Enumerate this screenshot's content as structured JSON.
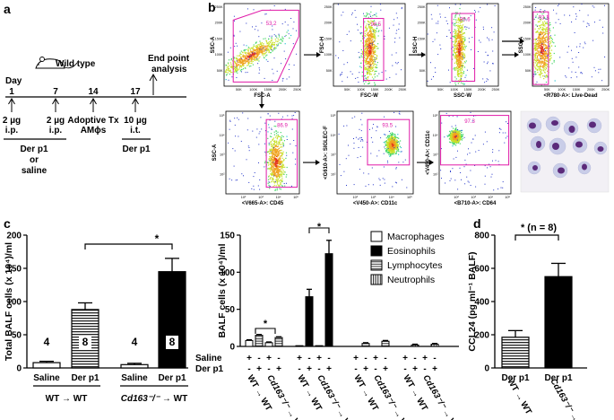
{
  "panel_labels": {
    "a": "a",
    "b": "b",
    "c": "c",
    "d": "d"
  },
  "panel_a": {
    "day_label": "Day",
    "days": [
      "1",
      "7",
      "14",
      "17"
    ],
    "mouse_label": "Wild type",
    "end_point": [
      "End point",
      "analysis"
    ],
    "doses": [
      [
        "2 µg",
        "i.p."
      ],
      [
        "2 µg",
        "i.p."
      ],
      [
        "Adoptive Tx",
        "AMϕs"
      ],
      [
        "10 µg",
        "i.t."
      ]
    ],
    "treatment_left": [
      "Der p1",
      "or",
      "saline"
    ],
    "treatment_right": "Der p1"
  },
  "panel_b": {
    "plots": [
      {
        "x_label": "FSC-A",
        "y_label": "SSC-A",
        "gate_value": "53.2"
      },
      {
        "x_label": "FSC-W",
        "y_label": "FSC-H",
        "gate_value": "98.5"
      },
      {
        "x_label": "SSC-W",
        "y_label": "SSC-H",
        "gate_value": "99.6"
      },
      {
        "x_label": "<R780-A>: Live-Dead",
        "y_label": "SSC-A",
        "gate_value": "93.1"
      },
      {
        "x_label": "<V665-A>: CD45",
        "y_label": "SSC-A",
        "gate_value": "86.9"
      },
      {
        "x_label": "<V450-A>: CD11c",
        "y_label": "<G610-A>: SIGLEC-F",
        "gate_value": "93.5"
      },
      {
        "x_label": "<B710-A>: CD64",
        "y_label": "<V450-A>: CD11c",
        "gate_value": "97.3"
      }
    ],
    "axis_ticks_k": [
      "50K",
      "100K",
      "150K",
      "200K",
      "250K"
    ],
    "log_ticks": [
      "10²",
      "10³",
      "10⁴",
      "10⁵"
    ]
  },
  "chart_data": [
    {
      "type": "bar",
      "panel": "c-left",
      "ylabel": "Total BALF cells (x 10⁴)/ml",
      "ylim": [
        0,
        200
      ],
      "yticks": [
        "0",
        "50",
        "100",
        "150",
        "200"
      ],
      "categories": [
        "Saline",
        "Der p1",
        "Saline",
        "Der p1"
      ],
      "values": [
        8,
        88,
        5,
        145
      ],
      "errors": [
        2,
        10,
        2,
        20
      ],
      "n_labels": [
        "4",
        "8",
        "4",
        "8"
      ],
      "group_labels": [
        [
          "WT",
          "WT"
        ],
        [
          "Cd163⁻/⁻",
          "WT"
        ]
      ],
      "significance": "*"
    },
    {
      "type": "bar",
      "panel": "c-right",
      "ylabel": "BALF cells (x 10⁴)/ml",
      "ylim": [
        0,
        150
      ],
      "yticks": [
        "0",
        "50",
        "100",
        "150"
      ],
      "row_labels": [
        "Saline",
        "Der p1"
      ],
      "signs_saline": [
        "+",
        "-",
        "+",
        "-"
      ],
      "signs_derp1": [
        "-",
        "+",
        "-",
        "+"
      ],
      "group_labels": [
        [
          "WT",
          "WT"
        ],
        [
          "Cd163⁻/⁻",
          "WT"
        ]
      ],
      "series": [
        {
          "name": "Macrophages",
          "values": [
            8,
            15,
            5,
            12
          ],
          "errors": [
            1,
            1,
            1,
            1
          ]
        },
        {
          "name": "Eosinophils",
          "values": [
            1,
            67,
            1,
            125
          ],
          "errors": [
            0,
            10,
            0,
            18
          ]
        },
        {
          "name": "Lymphocytes",
          "values": [
            0,
            4,
            0,
            7
          ],
          "errors": [
            0,
            1,
            0,
            1
          ]
        },
        {
          "name": "Neutrophils",
          "values": [
            0,
            2,
            0,
            3
          ],
          "errors": [
            0,
            1,
            0,
            1
          ]
        }
      ],
      "significance": [
        "*",
        "*"
      ]
    },
    {
      "type": "bar",
      "panel": "d",
      "ylabel": "CCL24 (pg ml⁻¹ BALF)",
      "ylim": [
        0,
        800
      ],
      "yticks": [
        "0",
        "200",
        "400",
        "600",
        "800"
      ],
      "categories": [
        "Der p1",
        "Der p1"
      ],
      "values": [
        185,
        550
      ],
      "errors": [
        40,
        80
      ],
      "group_labels": [
        [
          "WT",
          "WT"
        ],
        [
          "Cd163⁻/⁻",
          "WT"
        ]
      ],
      "significance": "* (n = 8)"
    }
  ]
}
